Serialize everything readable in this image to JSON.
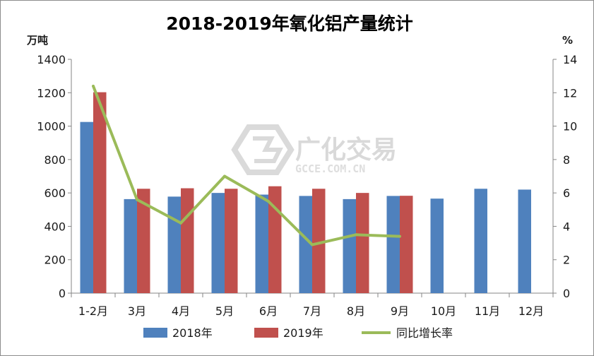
{
  "chart_data": {
    "type": "bar",
    "title": "2018-2019年氧化铝产量统计",
    "categories": [
      "1-2月",
      "3月",
      "4月",
      "5月",
      "6月",
      "7月",
      "8月",
      "9月",
      "10月",
      "11月",
      "12月"
    ],
    "series": [
      {
        "name": "2018年",
        "type": "bar",
        "axis": "left",
        "color": "#4f81bd",
        "values": [
          1025,
          563,
          578,
          600,
          590,
          582,
          563,
          582,
          566,
          625,
          620
        ]
      },
      {
        "name": "2019年",
        "type": "bar",
        "axis": "left",
        "color": "#c0504d",
        "values": [
          1203,
          625,
          628,
          625,
          640,
          625,
          600,
          583,
          null,
          null,
          null
        ]
      },
      {
        "name": "同比增长率",
        "type": "line",
        "axis": "right",
        "color": "#9bbb59",
        "values": [
          12.4,
          5.6,
          4.2,
          7.0,
          5.5,
          2.9,
          3.5,
          3.4,
          null,
          null,
          null
        ]
      }
    ],
    "y_left": {
      "unit": "万吨",
      "min": 0,
      "max": 1400,
      "ticks": [
        "0",
        "200",
        "400",
        "600",
        "800",
        "1000",
        "1200",
        "1400"
      ]
    },
    "y_right": {
      "unit": "%",
      "min": 0,
      "max": 14,
      "ticks": [
        "0",
        "2",
        "4",
        "6",
        "8",
        "10",
        "12",
        "14"
      ]
    },
    "grid": false,
    "legend": "bottom"
  },
  "watermark": {
    "text": "广化交易",
    "sub": "GCCE.COM.CN"
  }
}
